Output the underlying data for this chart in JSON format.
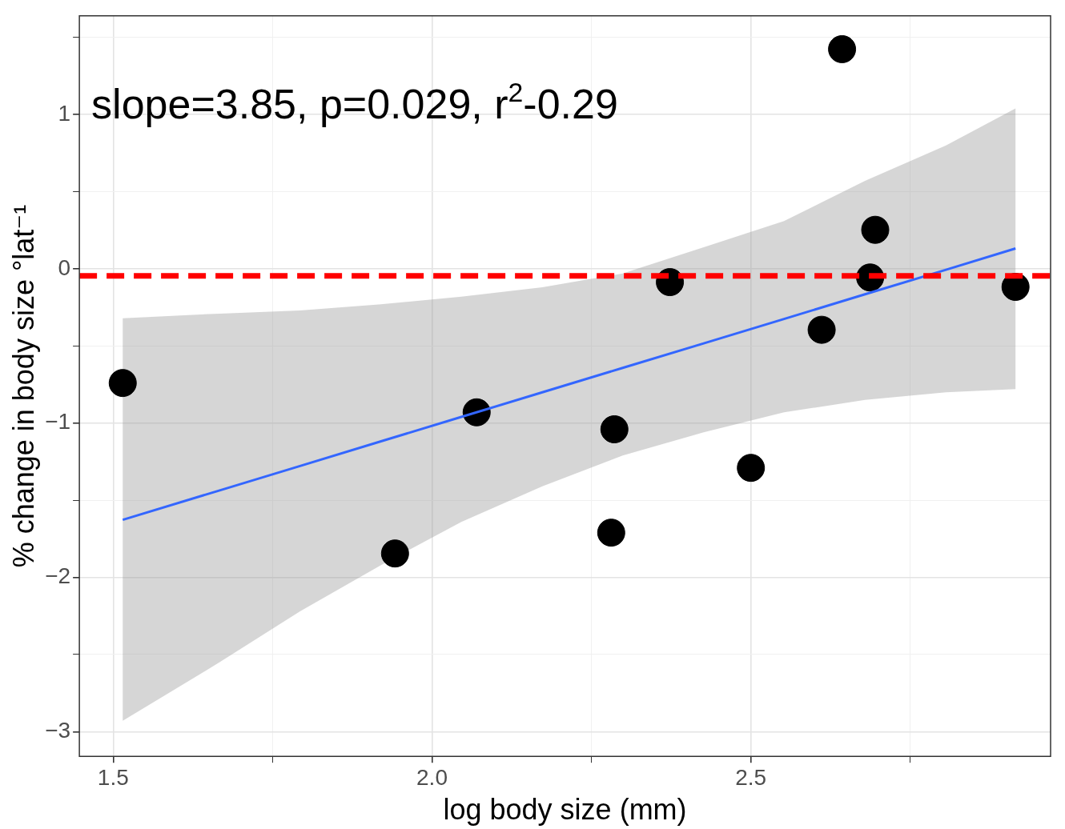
{
  "chart_data": {
    "type": "scatter",
    "xlabel": "log body size (mm)",
    "ylabel": "% change in body size °lat⁻¹",
    "annotations": [
      "slope=3.85, p=0.029, r$^{2}$-0.29"
    ],
    "xlim": [
      1.447,
      2.97
    ],
    "ylim": [
      -3.16,
      1.64
    ],
    "xticks": [
      1.5,
      {
        "value": 1.75,
        "label": null
      },
      {
        "value": 2,
        "label": "2.0"
      },
      {
        "value": 2.25,
        "label": null
      },
      2.5,
      {
        "value": 2.75,
        "label": null
      }
    ],
    "yticks": [
      {
        "value": -3,
        "label": "−3"
      },
      {
        "value": -2.5,
        "label": null
      },
      {
        "value": -2,
        "label": "−2"
      },
      {
        "value": -1.5,
        "label": null
      },
      {
        "value": -1,
        "label": "−1"
      },
      {
        "value": -0.5,
        "label": null
      },
      0,
      {
        "value": 0.5,
        "label": null
      },
      1,
      {
        "value": 1.5,
        "label": null
      }
    ],
    "grid": true,
    "marker": "circle",
    "series": [
      {
        "type": "scatter",
        "color": "#000000",
        "x": [
          1.515,
          1.942,
          2.07,
          2.281,
          2.286,
          2.373,
          2.5,
          2.611,
          2.643,
          2.687,
          2.695,
          2.915
        ],
        "values": [
          -0.74,
          -1.845,
          -0.93,
          -1.71,
          -1.04,
          -0.086,
          -1.29,
          -0.395,
          1.424,
          -0.056,
          0.253,
          -0.117
        ]
      },
      {
        "type": "line",
        "color": "#3366ff",
        "marker": "none",
        "x": [
          1.515,
          1.667,
          1.793,
          1.92,
          2.046,
          2.173,
          2.299,
          2.426,
          2.552,
          2.679,
          2.806,
          2.915
        ],
        "values": [
          -1.627,
          -1.436,
          -1.278,
          -1.118,
          -0.96,
          -0.8,
          -0.642,
          -0.483,
          -0.325,
          -0.165,
          -0.006,
          0.132
        ],
        "lower": [
          -2.93,
          -2.55,
          -2.22,
          -1.92,
          -1.64,
          -1.41,
          -1.21,
          -1.06,
          -0.93,
          -0.85,
          -0.8,
          -0.78
        ],
        "upper": [
          -0.32,
          -0.29,
          -0.27,
          -0.23,
          -0.18,
          -0.12,
          -0.03,
          0.14,
          0.31,
          0.57,
          0.8,
          1.04
        ]
      }
    ],
    "ref_lines": [
      {
        "axis": "y",
        "value": -0.046,
        "color": "#ff0000",
        "line_style": "dashed"
      }
    ]
  }
}
